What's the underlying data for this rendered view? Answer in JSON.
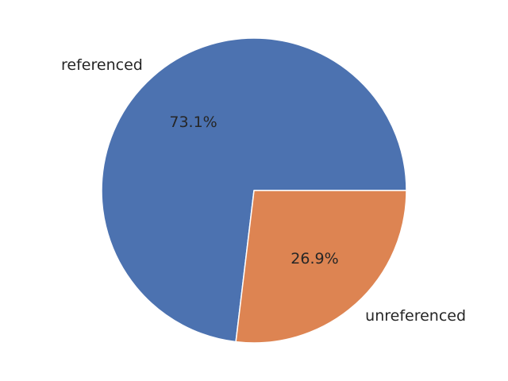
{
  "chart_data": {
    "type": "pie",
    "title": "",
    "slices": [
      {
        "label": "referenced",
        "value": 73.1,
        "percent_label": "73.1%",
        "color": "#4c72b0"
      },
      {
        "label": "unreferenced",
        "value": 26.9,
        "percent_label": "26.9%",
        "color": "#dd8452"
      }
    ],
    "start_angle_deg": 0,
    "direction": "counterclockwise",
    "edge_color": "#ffffff"
  }
}
